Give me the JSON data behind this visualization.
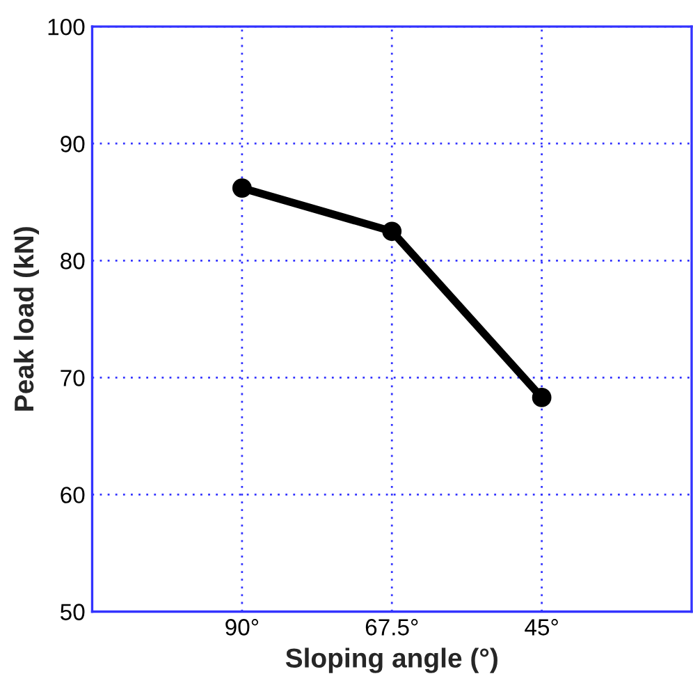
{
  "chart_data": {
    "type": "line",
    "xlabel": "Sloping angle (°)",
    "ylabel": "Peak load (kN)",
    "categories": [
      "90°",
      "67.5°",
      "45°"
    ],
    "series": [
      {
        "color": "#000000",
        "values": [
          86.2,
          82.5,
          68.3
        ]
      }
    ],
    "ylim": [
      50,
      100
    ],
    "yticks": [
      50,
      60,
      70,
      80,
      90,
      100
    ],
    "grid": true,
    "marker": "circle",
    "line_style": "solid"
  }
}
